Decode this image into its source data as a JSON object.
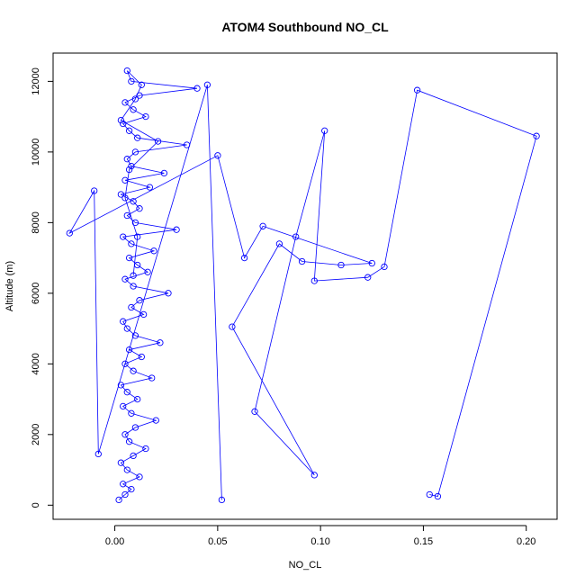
{
  "chart_data": {
    "type": "scatter",
    "title": "ATOM4 Southbound NO_CL",
    "xlabel": "NO_CL",
    "ylabel": "Altitude (m)",
    "xlim": [
      -0.03,
      0.215
    ],
    "ylim": [
      -400,
      12800
    ],
    "x_ticks": [
      0.0,
      0.05,
      0.1,
      0.15,
      0.2
    ],
    "x_tick_labels": [
      "0.00",
      "0.05",
      "0.10",
      "0.15",
      "0.20"
    ],
    "y_ticks": [
      0,
      2000,
      4000,
      6000,
      8000,
      10000,
      12000
    ],
    "y_tick_labels": [
      "0",
      "2000",
      "4000",
      "6000",
      "8000",
      "10000",
      "12000"
    ],
    "style": {
      "marker": "open-circle",
      "connected": true,
      "color": "#0000ff"
    },
    "grid": false,
    "legend": "none",
    "series": [
      {
        "x": [
          0.002,
          0.005,
          0.008,
          0.004,
          0.012,
          0.006,
          0.003,
          0.009,
          0.015,
          0.007,
          0.005,
          0.01,
          0.02,
          0.008,
          0.004,
          0.011,
          0.006,
          0.003,
          0.018,
          0.009,
          0.005,
          0.013,
          0.007,
          0.022,
          0.01,
          0.006,
          0.004,
          0.014,
          0.008,
          0.012,
          0.026,
          0.009,
          0.005,
          0.016,
          0.011,
          0.007,
          0.019,
          0.008,
          0.004,
          0.03,
          0.01,
          0.006,
          0.012,
          0.009,
          0.003,
          0.017,
          0.005,
          0.024,
          0.008,
          0.006,
          0.01,
          0.035,
          0.011,
          0.007,
          0.004,
          0.015,
          0.009,
          0.005,
          0.012,
          0.04,
          0.008,
          0.006,
          0.013,
          0.01,
          0.003,
          0.021,
          0.007,
          0.005,
          0.011,
          0.009
        ],
        "y": [
          150,
          300,
          450,
          600,
          800,
          1000,
          1200,
          1400,
          1600,
          1800,
          2000,
          2200,
          2400,
          2600,
          2800,
          3000,
          3200,
          3400,
          3600,
          3800,
          4000,
          4200,
          4400,
          4600,
          4800,
          5000,
          5200,
          5400,
          5600,
          5800,
          6000,
          6200,
          6400,
          6600,
          6800,
          7000,
          7200,
          7400,
          7600,
          7800,
          8000,
          8200,
          8400,
          8600,
          8800,
          9000,
          9200,
          9400,
          9600,
          9800,
          10000,
          10200,
          10400,
          10600,
          10800,
          11000,
          11200,
          11400,
          11600,
          11800,
          12000,
          12300,
          11900,
          11500,
          10900,
          10300,
          9500,
          8700,
          7600,
          6500
        ]
      },
      {
        "x": [
          0.153,
          0.157,
          0.205,
          0.147,
          0.131,
          0.123,
          0.097,
          0.102,
          0.088,
          0.068,
          0.097,
          0.057,
          0.08,
          0.091,
          0.11,
          0.125,
          0.072,
          0.063,
          0.05,
          -0.022,
          -0.01,
          -0.008,
          0.045,
          0.052
        ],
        "y": [
          300,
          250,
          10450,
          11750,
          6750,
          6450,
          6350,
          10600,
          7600,
          2650,
          850,
          5050,
          7400,
          6900,
          6800,
          6850,
          7900,
          7000,
          9900,
          7700,
          8900,
          1450,
          11900,
          150
        ]
      }
    ]
  }
}
